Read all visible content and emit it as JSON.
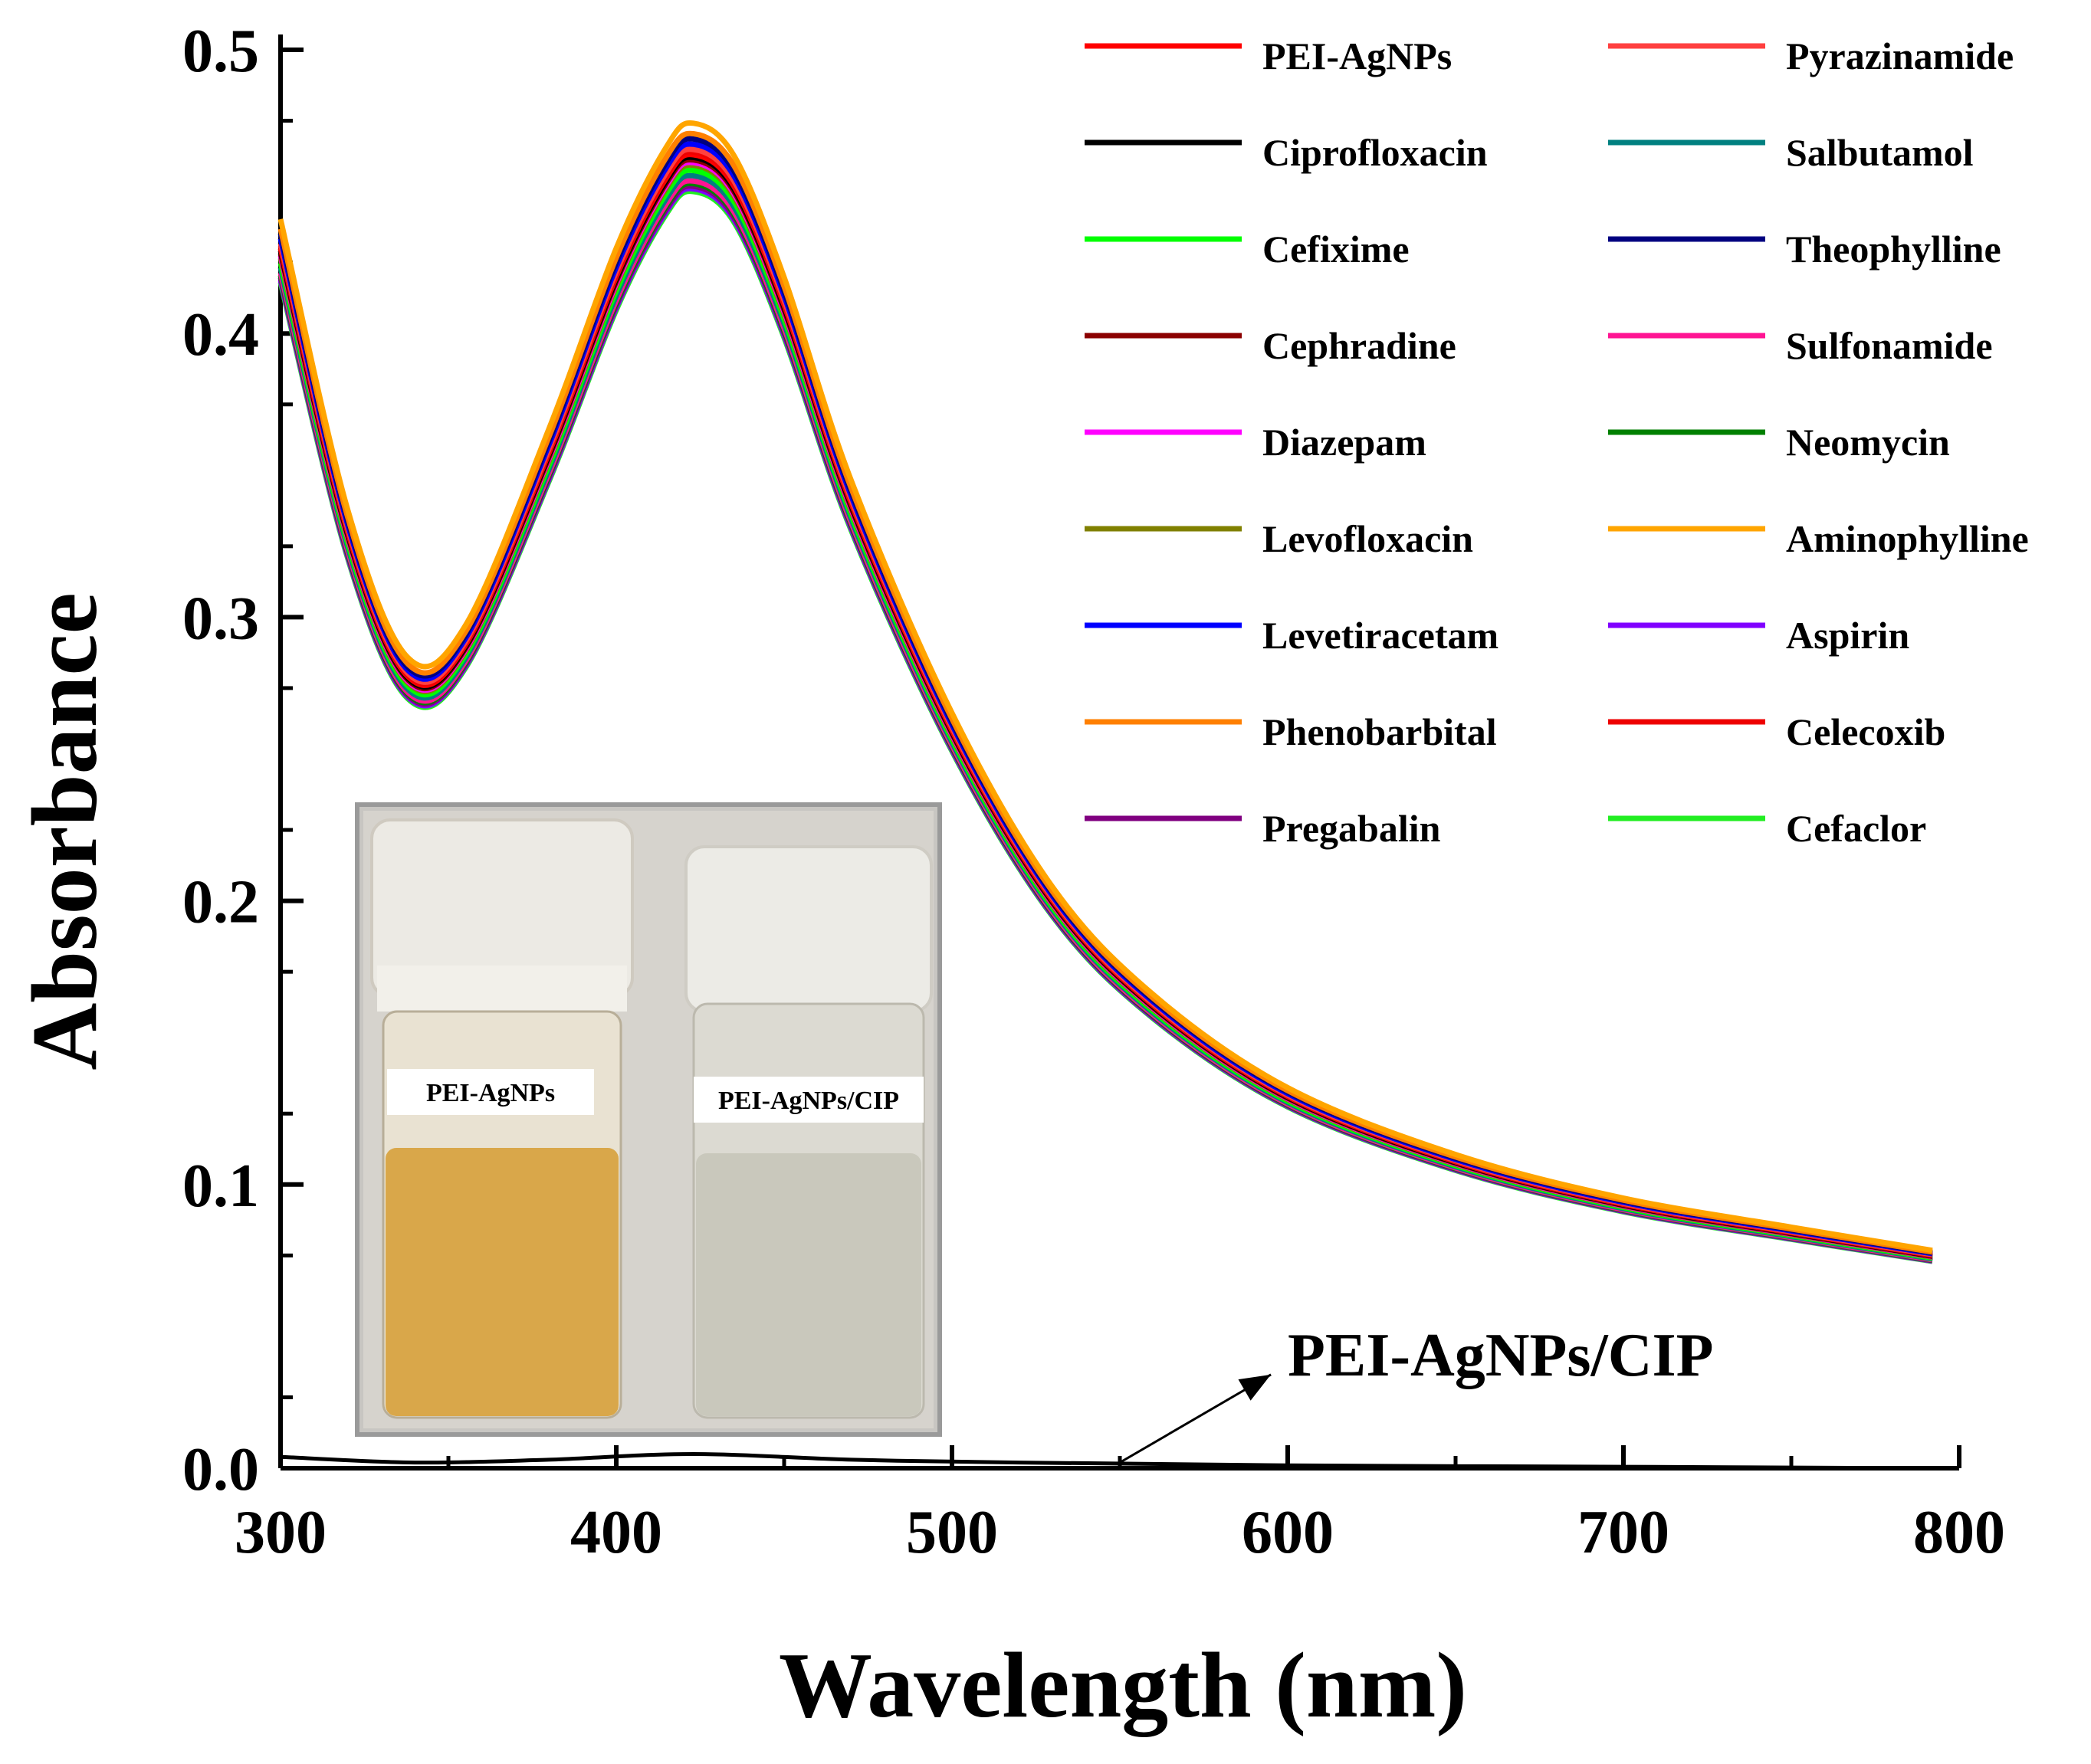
{
  "chart_data": {
    "type": "line",
    "title": "",
    "xlabel": "Wavelength (nm)",
    "ylabel": "Absorbance",
    "xlim": [
      300,
      800
    ],
    "ylim": [
      0.0,
      0.5
    ],
    "x_ticks": [
      "300",
      "400",
      "500",
      "600",
      "700",
      "800"
    ],
    "y_ticks": [
      "0.0",
      "0.1",
      "0.2",
      "0.3",
      "0.4",
      "0.5"
    ],
    "x": [
      300,
      320,
      338,
      355,
      380,
      400,
      415,
      423,
      435,
      450,
      470,
      500,
      530,
      560,
      600,
      650,
      700,
      750,
      792
    ],
    "base_profile": [
      0.43,
      0.33,
      0.279,
      0.29,
      0.358,
      0.42,
      0.455,
      0.463,
      0.452,
      0.41,
      0.34,
      0.26,
      0.2,
      0.163,
      0.131,
      0.108,
      0.093,
      0.083,
      0.075
    ],
    "series": [
      {
        "name": "PEI-AgNPs",
        "color": "#ff0000",
        "offset": 0.0
      },
      {
        "name": "Ciprofloxacin",
        "color": "#000000",
        "offset": -0.001
      },
      {
        "name": "Cefixime",
        "color": "#00ff00",
        "offset": -0.006
      },
      {
        "name": "Cephradine",
        "color": "#8b0000",
        "offset": -0.002
      },
      {
        "name": "Diazepam",
        "color": "#ff00ff",
        "offset": -0.003
      },
      {
        "name": "Levofloxacin",
        "color": "#808000",
        "offset": -0.004
      },
      {
        "name": "Levetiracetam",
        "color": "#0000ff",
        "offset": 0.004
      },
      {
        "name": "Phenobarbital",
        "color": "#ff8000",
        "offset": 0.008
      },
      {
        "name": "Pregabalin",
        "color": "#800080",
        "offset": -0.012
      },
      {
        "name": "Pyrazinamide",
        "color": "#ff4040",
        "offset": 0.002
      },
      {
        "name": "Salbutamol",
        "color": "#008080",
        "offset": -0.008
      },
      {
        "name": "Theophylline",
        "color": "#000080",
        "offset": 0.006
      },
      {
        "name": "Sulfonamide",
        "color": "#ff1493",
        "offset": -0.01
      },
      {
        "name": "Neomycin",
        "color": "#008000",
        "offset": -0.011
      },
      {
        "name": "Aminophylline",
        "color": "#ffa500",
        "offset": 0.012
      },
      {
        "name": "Aspirin",
        "color": "#8000ff",
        "offset": -0.013
      },
      {
        "name": "Celecoxib",
        "color": "#ee0000",
        "offset": 0.001
      },
      {
        "name": "Cefaclor",
        "color": "#22ee22",
        "offset": -0.014
      }
    ],
    "cip_series": {
      "name": "PEI-AgNPs/CIP",
      "color": "#000000",
      "x": [
        300,
        340,
        380,
        423,
        470,
        520,
        600,
        700,
        792
      ],
      "values": [
        0.004,
        0.002,
        0.003,
        0.005,
        0.003,
        0.002,
        0.001,
        0.0005,
        0.0
      ]
    },
    "annotation": {
      "text": "PEI-AgNPs/CIP",
      "arrow_from": [
        550,
        0.002
      ],
      "arrow_to": [
        595,
        0.033
      ]
    },
    "legend_position": "top-right",
    "inset": {
      "description_labels": [
        "PEI-AgNPs",
        "PEI-AgNPs/CIP"
      ],
      "vial_colors": [
        "#d9a74a",
        "#c9c8bc"
      ]
    }
  }
}
